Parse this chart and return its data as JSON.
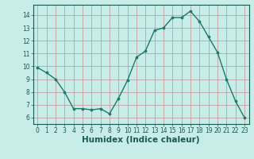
{
  "x": [
    0,
    1,
    2,
    3,
    4,
    5,
    6,
    7,
    8,
    9,
    10,
    11,
    12,
    13,
    14,
    15,
    16,
    17,
    18,
    19,
    20,
    21,
    22,
    23
  ],
  "y": [
    9.9,
    9.5,
    9.0,
    8.0,
    6.7,
    6.7,
    6.6,
    6.7,
    6.3,
    7.5,
    8.9,
    10.7,
    11.2,
    12.8,
    13.0,
    13.8,
    13.8,
    14.3,
    13.5,
    12.3,
    11.1,
    9.0,
    7.3,
    6.0
  ],
  "xlabel": "Humidex (Indice chaleur)",
  "ylim": [
    5.5,
    14.8
  ],
  "xlim": [
    -0.5,
    23.5
  ],
  "yticks": [
    6,
    7,
    8,
    9,
    10,
    11,
    12,
    13,
    14
  ],
  "xticks": [
    0,
    1,
    2,
    3,
    4,
    5,
    6,
    7,
    8,
    9,
    10,
    11,
    12,
    13,
    14,
    15,
    16,
    17,
    18,
    19,
    20,
    21,
    22,
    23
  ],
  "line_color": "#1a7a6e",
  "marker_color": "#1a7a6e",
  "bg_color": "#c8ece8",
  "grid_color": "#c09090",
  "tick_label_fontsize": 5.5,
  "xlabel_fontsize": 7.5,
  "bottom_label_color": "#1a5a50"
}
